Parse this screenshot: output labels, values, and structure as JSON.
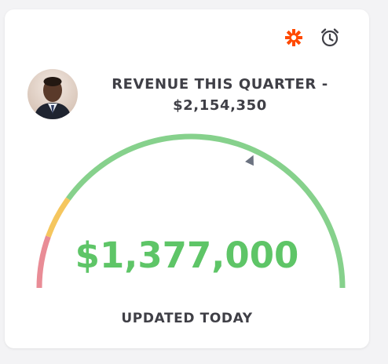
{
  "header": {
    "icons": [
      "zapier-asterisk-icon",
      "alarm-clock-icon"
    ],
    "accent_color": "#ff4a00"
  },
  "widget": {
    "title_line1": "REVENUE THIS QUARTER -",
    "title_line2": "$2,154,350",
    "value": "$1,377,000",
    "footer": "UPDATED TODAY"
  },
  "gauge": {
    "current": 1377000,
    "target": 2154350,
    "target_fraction": 0.64,
    "segments": [
      {
        "from": 0.0,
        "to": 0.11,
        "color": "#e98c96"
      },
      {
        "from": 0.11,
        "to": 0.2,
        "color": "#f5c65e"
      },
      {
        "from": 0.2,
        "to": 1.0,
        "color": "#86d18c"
      }
    ],
    "marker_color": "#6b7280"
  }
}
